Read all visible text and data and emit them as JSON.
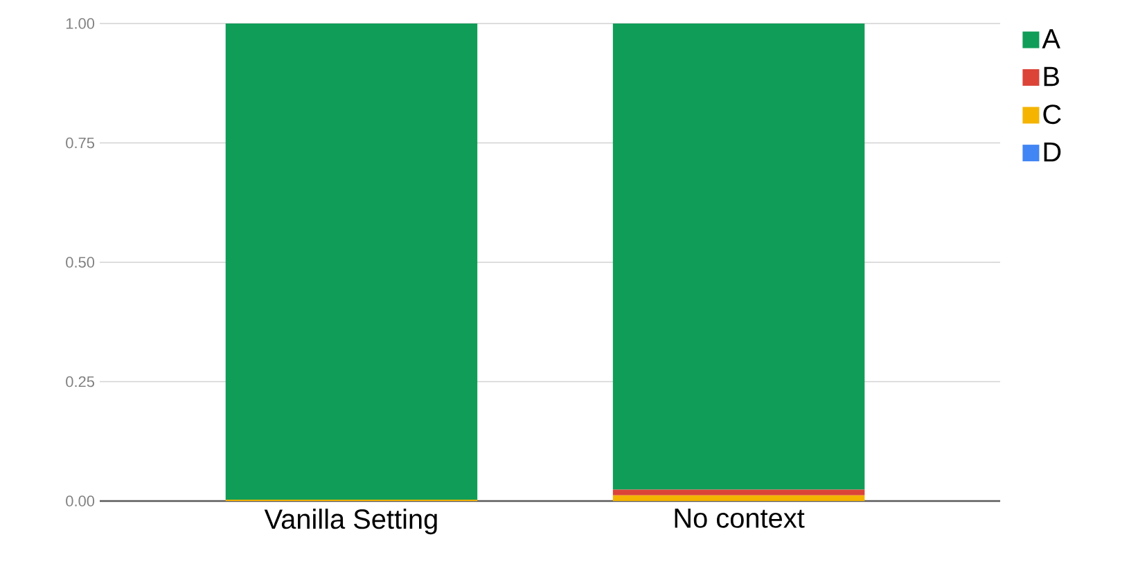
{
  "chart_data": {
    "type": "bar",
    "stacked": true,
    "categories": [
      "Vanilla Setting",
      "No context"
    ],
    "series": [
      {
        "name": "D",
        "color": "#4285f4",
        "values": [
          0,
          0
        ]
      },
      {
        "name": "C",
        "color": "#f4b400",
        "values": [
          0.003,
          0.012
        ]
      },
      {
        "name": "B",
        "color": "#db4437",
        "values": [
          0,
          0.012
        ]
      },
      {
        "name": "A",
        "color": "#0f9d58",
        "values": [
          0.997,
          0.976
        ]
      }
    ],
    "ylim": [
      0,
      1
    ],
    "yticks": [
      {
        "value": 0,
        "label": "0.00"
      },
      {
        "value": 0.25,
        "label": "0.25"
      },
      {
        "value": 0.5,
        "label": "0.50"
      },
      {
        "value": 0.75,
        "label": "0.75"
      },
      {
        "value": 1,
        "label": "1.00"
      }
    ],
    "grid": "y",
    "legend": "top right"
  }
}
